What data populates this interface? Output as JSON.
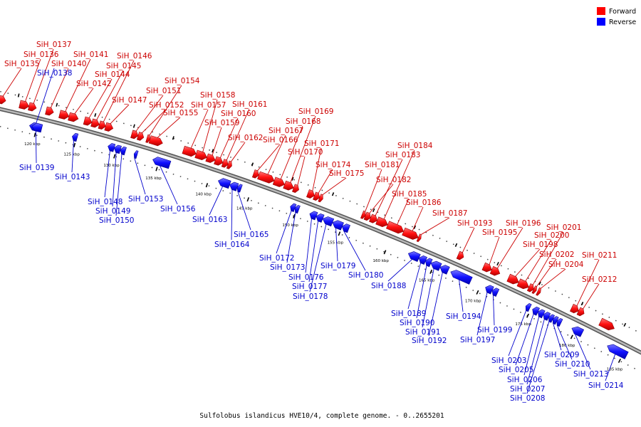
{
  "caption": "Sulfolobus islandicus HVE10/4, complete genome. - 0..2655201",
  "legend": [
    {
      "label": "Forward",
      "color": "#ff0000"
    },
    {
      "label": "Reverse",
      "color": "#0000ff"
    }
  ],
  "colors": {
    "forward": "#ff0000",
    "forward_label": "#cc0000",
    "reverse": "#0000ff",
    "reverse_label": "#0000cc",
    "backbone": "#888888"
  },
  "kbp_marks": [
    {
      "label": "120 kbp",
      "t": 0.07
    },
    {
      "label": "125 kbp",
      "t": 0.135
    },
    {
      "label": "130 kbp",
      "t": 0.2
    },
    {
      "label": "135 kbp",
      "t": 0.268
    },
    {
      "label": "140 kbp",
      "t": 0.348
    },
    {
      "label": "145 kbp",
      "t": 0.413
    },
    {
      "label": "150 kbp",
      "t": 0.485
    },
    {
      "label": "155 kbp",
      "t": 0.555
    },
    {
      "label": "160 kbp",
      "t": 0.625
    },
    {
      "label": "165 kbp",
      "t": 0.695
    },
    {
      "label": "170 kbp",
      "t": 0.765
    },
    {
      "label": "175 kbp",
      "t": 0.84
    },
    {
      "label": "180 kbp",
      "t": 0.905
    },
    {
      "label": "185 kbp",
      "t": 0.975
    }
  ],
  "genes": [
    {
      "id": "SiH_0135",
      "strand": "forward",
      "t0": 0.0,
      "t1": 0.012
    },
    {
      "id": "SiH_0136",
      "strand": "forward",
      "t0": 0.035,
      "t1": 0.05
    },
    {
      "id": "SiH_0137",
      "strand": "forward",
      "t0": 0.05,
      "t1": 0.062
    },
    {
      "id": "SiH_0138",
      "strand": "reverse",
      "t0": 0.058,
      "t1": 0.075
    },
    {
      "id": "SiH_0139",
      "strand": "reverse",
      "t0": 0.062,
      "t1": 0.078
    },
    {
      "id": "SiH_0140",
      "strand": "forward",
      "t0": 0.078,
      "t1": 0.09
    },
    {
      "id": "SiH_0141",
      "strand": "forward",
      "t0": 0.1,
      "t1": 0.115
    },
    {
      "id": "SiH_0142",
      "strand": "forward",
      "t0": 0.115,
      "t1": 0.13
    },
    {
      "id": "SiH_0143",
      "strand": "reverse",
      "t0": 0.128,
      "t1": 0.136
    },
    {
      "id": "SiH_0144",
      "strand": "forward",
      "t0": 0.14,
      "t1": 0.152
    },
    {
      "id": "SiH_0145",
      "strand": "forward",
      "t0": 0.152,
      "t1": 0.164
    },
    {
      "id": "SiH_0146",
      "strand": "forward",
      "t0": 0.164,
      "t1": 0.174
    },
    {
      "id": "SiH_0147",
      "strand": "forward",
      "t0": 0.174,
      "t1": 0.186
    },
    {
      "id": "SiH_0148",
      "strand": "reverse",
      "t0": 0.186,
      "t1": 0.196
    },
    {
      "id": "SiH_0149",
      "strand": "reverse",
      "t0": 0.196,
      "t1": 0.206
    },
    {
      "id": "SiH_0150",
      "strand": "reverse",
      "t0": 0.206,
      "t1": 0.214
    },
    {
      "id": "SiH_0151",
      "strand": "forward",
      "t0": 0.216,
      "t1": 0.226
    },
    {
      "id": "SiH_0152",
      "strand": "forward",
      "t0": 0.226,
      "t1": 0.235
    },
    {
      "id": "SiH_0153",
      "strand": "reverse",
      "t0": 0.228,
      "t1": 0.233
    },
    {
      "id": "SiH_0154",
      "strand": "forward",
      "t0": 0.24,
      "t1": 0.245
    },
    {
      "id": "SiH_0155",
      "strand": "forward",
      "t0": 0.245,
      "t1": 0.265
    },
    {
      "id": "SiH_0156",
      "strand": "reverse",
      "t0": 0.258,
      "t1": 0.285
    },
    {
      "id": "SiH_0157",
      "strand": "forward",
      "t0": 0.298,
      "t1": 0.318
    },
    {
      "id": "SiH_0158",
      "strand": "forward",
      "t0": 0.318,
      "t1": 0.335
    },
    {
      "id": "SiH_0159",
      "strand": "forward",
      "t0": 0.335,
      "t1": 0.348
    },
    {
      "id": "SiH_0160",
      "strand": "forward",
      "t0": 0.348,
      "t1": 0.36
    },
    {
      "id": "SiH_0161",
      "strand": "forward",
      "t0": 0.36,
      "t1": 0.368
    },
    {
      "id": "SiH_0162",
      "strand": "forward",
      "t0": 0.368,
      "t1": 0.374
    },
    {
      "id": "SiH_0163",
      "strand": "reverse",
      "t0": 0.362,
      "t1": 0.38
    },
    {
      "id": "SiH_0164",
      "strand": "reverse",
      "t0": 0.38,
      "t1": 0.392
    },
    {
      "id": "SiH_0165",
      "strand": "reverse",
      "t0": 0.392,
      "t1": 0.398
    },
    {
      "id": "SiH_0166",
      "strand": "forward",
      "t0": 0.408,
      "t1": 0.416
    },
    {
      "id": "SiH_0167",
      "strand": "forward",
      "t0": 0.416,
      "t1": 0.44
    },
    {
      "id": "SiH_0168",
      "strand": "forward",
      "t0": 0.44,
      "t1": 0.456
    },
    {
      "id": "SiH_0169",
      "strand": "forward",
      "t0": 0.456,
      "t1": 0.47
    },
    {
      "id": "SiH_0170",
      "strand": "forward",
      "t0": 0.47,
      "t1": 0.478
    },
    {
      "id": "SiH_0171",
      "strand": "forward",
      "t0": 0.492,
      "t1": 0.502
    },
    {
      "id": "SiH_0172",
      "strand": "reverse",
      "t0": 0.475,
      "t1": 0.482
    },
    {
      "id": "SiH_0173",
      "strand": "reverse",
      "t0": 0.482,
      "t1": 0.488
    },
    {
      "id": "SiH_0174",
      "strand": "forward",
      "t0": 0.502,
      "t1": 0.51
    },
    {
      "id": "SiH_0175",
      "strand": "forward",
      "t0": 0.51,
      "t1": 0.515
    },
    {
      "id": "SiH_0176",
      "strand": "reverse",
      "t0": 0.505,
      "t1": 0.515
    },
    {
      "id": "SiH_0177",
      "strand": "reverse",
      "t0": 0.515,
      "t1": 0.525
    },
    {
      "id": "SiH_0178",
      "strand": "reverse",
      "t0": 0.525,
      "t1": 0.54
    },
    {
      "id": "SiH_0179",
      "strand": "reverse",
      "t0": 0.54,
      "t1": 0.555
    },
    {
      "id": "SiH_0180",
      "strand": "reverse",
      "t0": 0.555,
      "t1": 0.565
    },
    {
      "id": "SiH_0181",
      "strand": "forward",
      "t0": 0.575,
      "t1": 0.58
    },
    {
      "id": "SiH_0182",
      "strand": "forward",
      "t0": 0.58,
      "t1": 0.588
    },
    {
      "id": "SiH_0183",
      "strand": "forward",
      "t0": 0.588,
      "t1": 0.598
    },
    {
      "id": "SiH_0184",
      "strand": "forward",
      "t0": 0.598,
      "t1": 0.614
    },
    {
      "id": "SiH_0185",
      "strand": "forward",
      "t0": 0.614,
      "t1": 0.638
    },
    {
      "id": "SiH_0186",
      "strand": "forward",
      "t0": 0.638,
      "t1": 0.66
    },
    {
      "id": "SiH_0187",
      "strand": "forward",
      "t0": 0.66,
      "t1": 0.664
    },
    {
      "id": "SiH_0188",
      "strand": "reverse",
      "t0": 0.656,
      "t1": 0.672
    },
    {
      "id": "SiH_0189",
      "strand": "reverse",
      "t0": 0.672,
      "t1": 0.682
    },
    {
      "id": "SiH_0190",
      "strand": "reverse",
      "t0": 0.682,
      "t1": 0.69
    },
    {
      "id": "SiH_0191",
      "strand": "reverse",
      "t0": 0.69,
      "t1": 0.704
    },
    {
      "id": "SiH_0192",
      "strand": "reverse",
      "t0": 0.704,
      "t1": 0.716
    },
    {
      "id": "SiH_0193",
      "strand": "forward",
      "t0": 0.72,
      "t1": 0.728
    },
    {
      "id": "SiH_0194",
      "strand": "reverse",
      "t0": 0.72,
      "t1": 0.75
    },
    {
      "id": "SiH_0195",
      "strand": "forward",
      "t0": 0.758,
      "t1": 0.77
    },
    {
      "id": "SiH_0196",
      "strand": "forward",
      "t0": 0.77,
      "t1": 0.782
    },
    {
      "id": "SiH_0197",
      "strand": "reverse",
      "t0": 0.772,
      "t1": 0.782
    },
    {
      "id": "SiH_0198",
      "strand": "forward",
      "t0": 0.795,
      "t1": 0.81
    },
    {
      "id": "SiH_0199",
      "strand": "reverse",
      "t0": 0.782,
      "t1": 0.79
    },
    {
      "id": "SiH_0200",
      "strand": "forward",
      "t0": 0.81,
      "t1": 0.825
    },
    {
      "id": "SiH_0201",
      "strand": "forward",
      "t0": 0.825,
      "t1": 0.832
    },
    {
      "id": "SiH_0202",
      "strand": "forward",
      "t0": 0.832,
      "t1": 0.836
    },
    {
      "id": "SiH_0203",
      "strand": "reverse",
      "t0": 0.832,
      "t1": 0.838
    },
    {
      "id": "SiH_0204",
      "strand": "forward",
      "t0": 0.838,
      "t1": 0.842
    },
    {
      "id": "SiH_0205",
      "strand": "reverse",
      "t0": 0.842,
      "t1": 0.85
    },
    {
      "id": "SiH_0206",
      "strand": "reverse",
      "t0": 0.85,
      "t1": 0.858
    },
    {
      "id": "SiH_0207",
      "strand": "reverse",
      "t0": 0.858,
      "t1": 0.866
    },
    {
      "id": "SiH_0208",
      "strand": "reverse",
      "t0": 0.866,
      "t1": 0.872
    },
    {
      "id": "SiH_0209",
      "strand": "reverse",
      "t0": 0.872,
      "t1": 0.878
    },
    {
      "id": "SiH_0210",
      "strand": "reverse",
      "t0": 0.878,
      "t1": 0.884
    },
    {
      "id": "SiH_0211",
      "strand": "forward",
      "t0": 0.888,
      "t1": 0.898
    },
    {
      "id": "SiH_0212",
      "strand": "forward",
      "t0": 0.898,
      "t1": 0.906
    },
    {
      "id": "SiH_0213",
      "strand": "reverse",
      "t0": 0.9,
      "t1": 0.915
    },
    {
      "id": "SiH_0214",
      "strand": "reverse",
      "t0": 0.952,
      "t1": 0.98
    },
    {
      "id": "",
      "strand": "forward",
      "t0": 0.93,
      "t1": 0.95
    }
  ]
}
